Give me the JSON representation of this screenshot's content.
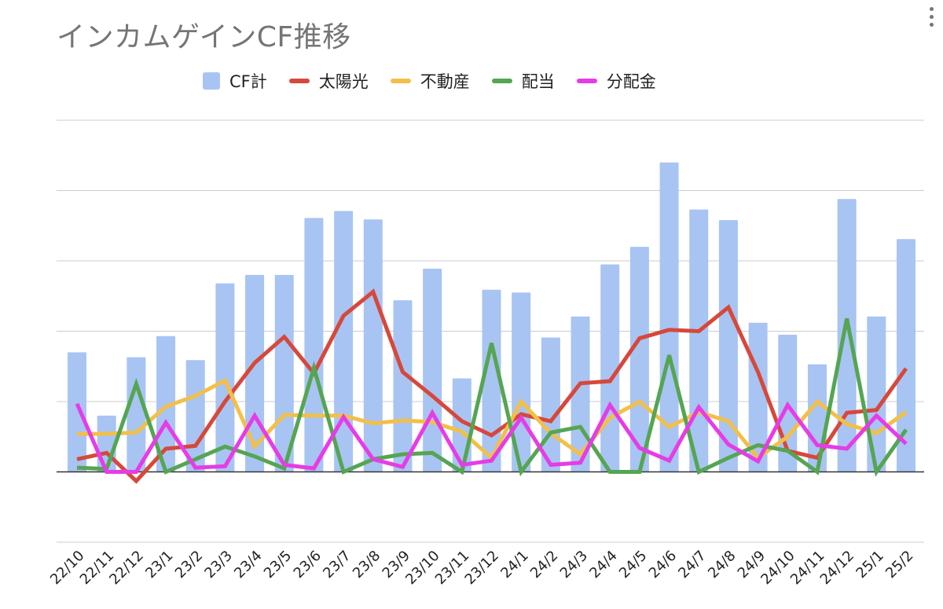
{
  "colors": {
    "cf_total": "#a8c4f2",
    "solar": "#d6483b",
    "real_estate": "#f2c048",
    "dividend": "#55a553",
    "fund_dividend": "#e63ce6",
    "grid": "#cccccc",
    "baseline": "#333333",
    "title": "#757575",
    "text": "#222222"
  },
  "icons": {
    "menu": "vertical-ellipsis-icon"
  },
  "chart_data": {
    "type": "bar",
    "title": "インカムゲインCF推移",
    "xlabel": "",
    "ylabel": "",
    "ylim": [
      -1,
      5
    ],
    "y_ticks": [
      -1,
      0,
      1,
      2,
      3,
      4,
      5
    ],
    "y_tick_labels_visible": false,
    "grid": true,
    "legend_position": "top",
    "categories": [
      "22/10",
      "22/11",
      "22/12",
      "23/1",
      "23/2",
      "23/3",
      "23/4",
      "23/5",
      "23/6",
      "23/7",
      "23/8",
      "23/9",
      "23/10",
      "23/11",
      "23/12",
      "24/1",
      "24/2",
      "24/3",
      "24/4",
      "24/5",
      "24/6",
      "24/7",
      "24/8",
      "24/9",
      "24/10",
      "24/11",
      "24/12",
      "25/1",
      "25/2"
    ],
    "series": [
      {
        "name": "CF計",
        "type": "bar",
        "color_key": "cf_total",
        "values": [
          1.7,
          0.8,
          1.63,
          1.93,
          1.59,
          2.68,
          2.8,
          2.8,
          3.61,
          3.71,
          3.59,
          2.44,
          2.89,
          1.33,
          2.59,
          2.55,
          1.91,
          2.21,
          2.95,
          3.2,
          4.4,
          3.73,
          3.58,
          2.12,
          1.95,
          1.53,
          3.88,
          2.21,
          3.31
        ]
      },
      {
        "name": "太陽光",
        "type": "line",
        "color_key": "solar",
        "values": [
          0.18,
          0.27,
          -0.13,
          0.33,
          0.37,
          1.0,
          1.55,
          1.92,
          1.4,
          2.22,
          2.56,
          1.42,
          1.08,
          0.72,
          0.52,
          0.82,
          0.72,
          1.26,
          1.29,
          1.9,
          2.02,
          2.0,
          2.34,
          1.42,
          0.3,
          0.2,
          0.84,
          0.88,
          1.47
        ]
      },
      {
        "name": "不動産",
        "type": "line",
        "color_key": "real_estate",
        "values": [
          0.54,
          0.54,
          0.56,
          0.93,
          1.08,
          1.3,
          0.36,
          0.81,
          0.8,
          0.8,
          0.69,
          0.73,
          0.71,
          0.57,
          0.2,
          1.0,
          0.55,
          0.25,
          0.77,
          1.0,
          0.64,
          0.85,
          0.72,
          0.2,
          0.5,
          1.0,
          0.68,
          0.55,
          0.85
        ]
      },
      {
        "name": "配当",
        "type": "line",
        "color_key": "dividend",
        "values": [
          0.06,
          0.04,
          1.25,
          0.0,
          0.18,
          0.36,
          0.22,
          0.05,
          1.48,
          0.0,
          0.18,
          0.25,
          0.27,
          0.0,
          1.83,
          0.0,
          0.56,
          0.64,
          0.0,
          0.0,
          1.66,
          0.0,
          0.2,
          0.38,
          0.3,
          0.0,
          2.18,
          0.0,
          0.6
        ]
      },
      {
        "name": "分配金",
        "type": "line",
        "color_key": "fund_dividend",
        "values": [
          0.97,
          0.0,
          0.0,
          0.7,
          0.06,
          0.08,
          0.8,
          0.1,
          0.05,
          0.78,
          0.18,
          0.07,
          0.84,
          0.1,
          0.16,
          0.77,
          0.1,
          0.13,
          0.95,
          0.34,
          0.16,
          0.92,
          0.39,
          0.15,
          0.95,
          0.38,
          0.33,
          0.8,
          0.4
        ]
      }
    ]
  }
}
